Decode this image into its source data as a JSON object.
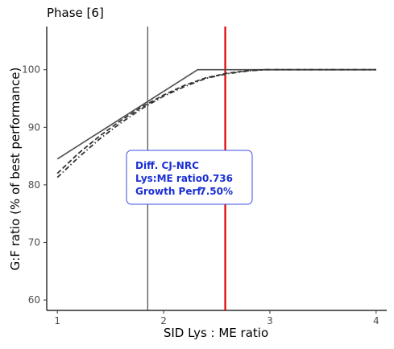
{
  "chart_data": {
    "type": "line",
    "title": "Phase [6]",
    "xlabel": "SID Lys : ME ratio",
    "ylabel": "G:F ratio (% of best performance)",
    "xlim": [
      0.9,
      4.1
    ],
    "ylim": [
      58.2,
      107.5
    ],
    "x_ticks": [
      1,
      2,
      3,
      4
    ],
    "y_ticks": [
      60,
      70,
      80,
      90,
      100
    ],
    "grid": false,
    "series": [
      {
        "style": "solid",
        "color": "#4d4d4d",
        "x": [
          1.0,
          2.32,
          4.0
        ],
        "y": [
          84.5,
          100.0,
          100.0
        ]
      },
      {
        "style": "dashed",
        "color": "#333333",
        "x": [
          1.0,
          1.2,
          1.4,
          1.6,
          1.8,
          2.0,
          2.2,
          2.4,
          2.6,
          2.8,
          2.95,
          3.2,
          3.6,
          4.0
        ],
        "y": [
          82.0,
          85.5,
          88.5,
          91.2,
          93.6,
          95.6,
          97.3,
          98.6,
          99.4,
          99.85,
          100.0,
          100.0,
          100.0,
          100.0
        ]
      },
      {
        "style": "dashdot",
        "color": "#333333",
        "x": [
          1.0,
          1.2,
          1.4,
          1.6,
          1.8,
          2.0,
          2.2,
          2.4,
          2.6,
          2.8,
          2.95,
          3.2,
          3.6,
          4.0
        ],
        "y": [
          81.3,
          84.8,
          88.0,
          90.8,
          93.3,
          95.4,
          97.1,
          98.5,
          99.3,
          99.8,
          100.0,
          100.0,
          100.0,
          100.0
        ]
      }
    ],
    "vlines": [
      {
        "x": 1.85,
        "color": "#222222"
      },
      {
        "x": 2.58,
        "color": "#e00000"
      }
    ],
    "annotation": {
      "title": "Diff. CJ-NRC",
      "rows": [
        {
          "label": "Lys:ME ratio",
          "value": "0.736"
        },
        {
          "label": "Growth Perf.",
          "value": "7.50%"
        }
      ],
      "border_color": "#3b4fe0",
      "text_color": "#1a2fd4"
    }
  }
}
